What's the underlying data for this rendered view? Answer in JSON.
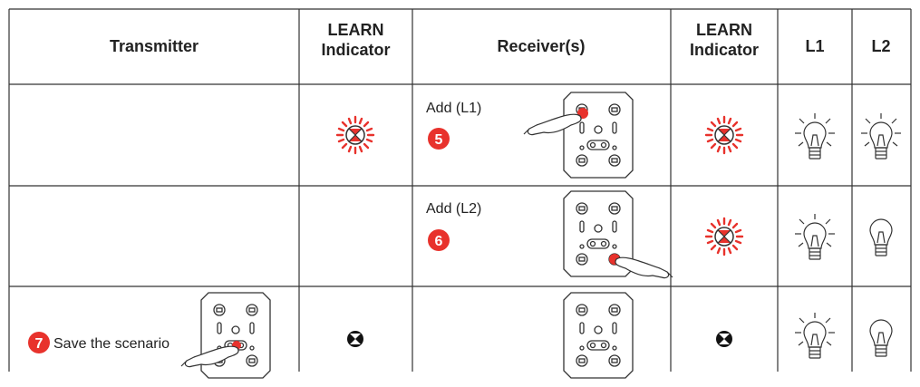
{
  "table": {
    "header": [
      "Transmitter",
      "LEARN Indicator",
      "Receiver(s)",
      "LEARN Indicator",
      "L1",
      "L2"
    ],
    "rows": [
      {
        "receiver_label": "Add (L1)",
        "step": "5"
      },
      {
        "receiver_label": "Add (L2)",
        "step": "6"
      },
      {
        "transmitter_step": "7",
        "transmitter_label": "Save the scenario"
      }
    ]
  }
}
